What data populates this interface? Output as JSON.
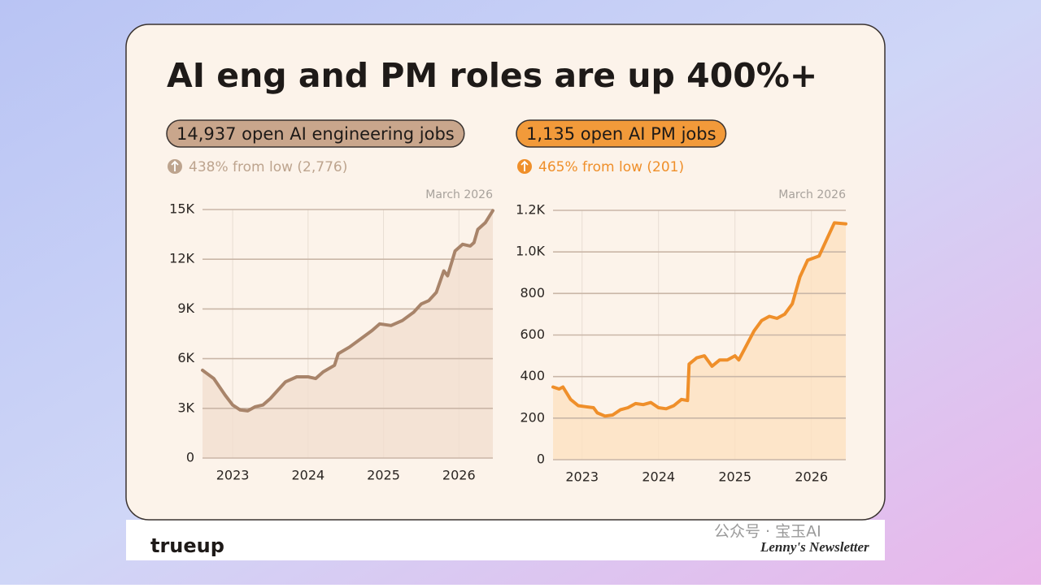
{
  "title": "AI eng and PM roles are up 400%+",
  "chart_data": [
    {
      "type": "line",
      "headline": "14,937 open AI engineering jobs",
      "change": "438% from low (2,776)",
      "annotation": "March 2026",
      "color": "#a8846a",
      "fill": "#f1dfcf",
      "pill_color": "#c9a68c",
      "change_color": "#bda48e",
      "grid": true,
      "x": [
        2022.6,
        2022.75,
        2022.9,
        2023.0,
        2023.1,
        2023.2,
        2023.3,
        2023.4,
        2023.5,
        2023.6,
        2023.7,
        2023.85,
        2024.0,
        2024.1,
        2024.2,
        2024.35,
        2024.4,
        2024.55,
        2024.7,
        2024.85,
        2024.95,
        2025.1,
        2025.25,
        2025.4,
        2025.5,
        2025.6,
        2025.7,
        2025.8,
        2025.85,
        2025.95,
        2026.05,
        2026.15,
        2026.2,
        2026.25,
        2026.35,
        2026.45
      ],
      "values": [
        5300,
        4800,
        3800,
        3200,
        2900,
        2850,
        3100,
        3200,
        3600,
        4100,
        4600,
        4900,
        4900,
        4800,
        5200,
        5600,
        6300,
        6700,
        7200,
        7700,
        8100,
        8000,
        8300,
        8800,
        9300,
        9500,
        10000,
        11300,
        11000,
        12500,
        12900,
        12800,
        13000,
        13800,
        14200,
        14937
      ],
      "xlim": [
        2022.6,
        2026.45
      ],
      "xticks": [
        2023,
        2024,
        2025,
        2026
      ],
      "ylim": [
        0,
        15000
      ],
      "yticks": [
        0,
        {
          "value": 3000,
          "label": "3K"
        },
        {
          "value": 6000,
          "label": "6K"
        },
        {
          "value": 9000,
          "label": "9K"
        },
        {
          "value": 12000,
          "label": "12K"
        },
        {
          "value": 15000,
          "label": "15K"
        }
      ]
    },
    {
      "type": "line",
      "headline": "1,135 open AI PM jobs",
      "change": "465% from low (201)",
      "annotation": "March 2026",
      "color": "#ef8f2a",
      "fill": "#fde1c0",
      "pill_color": "#f29a3a",
      "change_color": "#ef8f2a",
      "grid": true,
      "x": [
        2022.62,
        2022.7,
        2022.75,
        2022.85,
        2022.95,
        2023.05,
        2023.15,
        2023.2,
        2023.3,
        2023.4,
        2023.5,
        2023.6,
        2023.7,
        2023.8,
        2023.9,
        2024.0,
        2024.1,
        2024.2,
        2024.3,
        2024.38,
        2024.4,
        2024.5,
        2024.6,
        2024.7,
        2024.8,
        2024.9,
        2025.0,
        2025.05,
        2025.15,
        2025.25,
        2025.35,
        2025.45,
        2025.55,
        2025.65,
        2025.75,
        2025.85,
        2025.95,
        2026.1,
        2026.2,
        2026.3,
        2026.45
      ],
      "values": [
        350,
        340,
        350,
        290,
        260,
        255,
        250,
        225,
        210,
        215,
        240,
        250,
        270,
        265,
        275,
        250,
        245,
        260,
        290,
        285,
        460,
        490,
        500,
        450,
        480,
        480,
        500,
        480,
        550,
        620,
        670,
        690,
        680,
        700,
        750,
        880,
        960,
        980,
        1060,
        1140,
        1135
      ],
      "xlim": [
        2022.62,
        2026.45
      ],
      "xticks": [
        2023,
        2024,
        2025,
        2026
      ],
      "ylim": [
        0,
        1200
      ],
      "yticks": [
        0,
        200,
        400,
        600,
        800,
        {
          "value": 1000,
          "label": "1.0K"
        },
        {
          "value": 1200,
          "label": "1.2K"
        }
      ]
    }
  ],
  "footer": {
    "brand": "trueup",
    "watermark": "公众号 · 宝玉AI",
    "newsletter": "Lenny's Newsletter"
  }
}
